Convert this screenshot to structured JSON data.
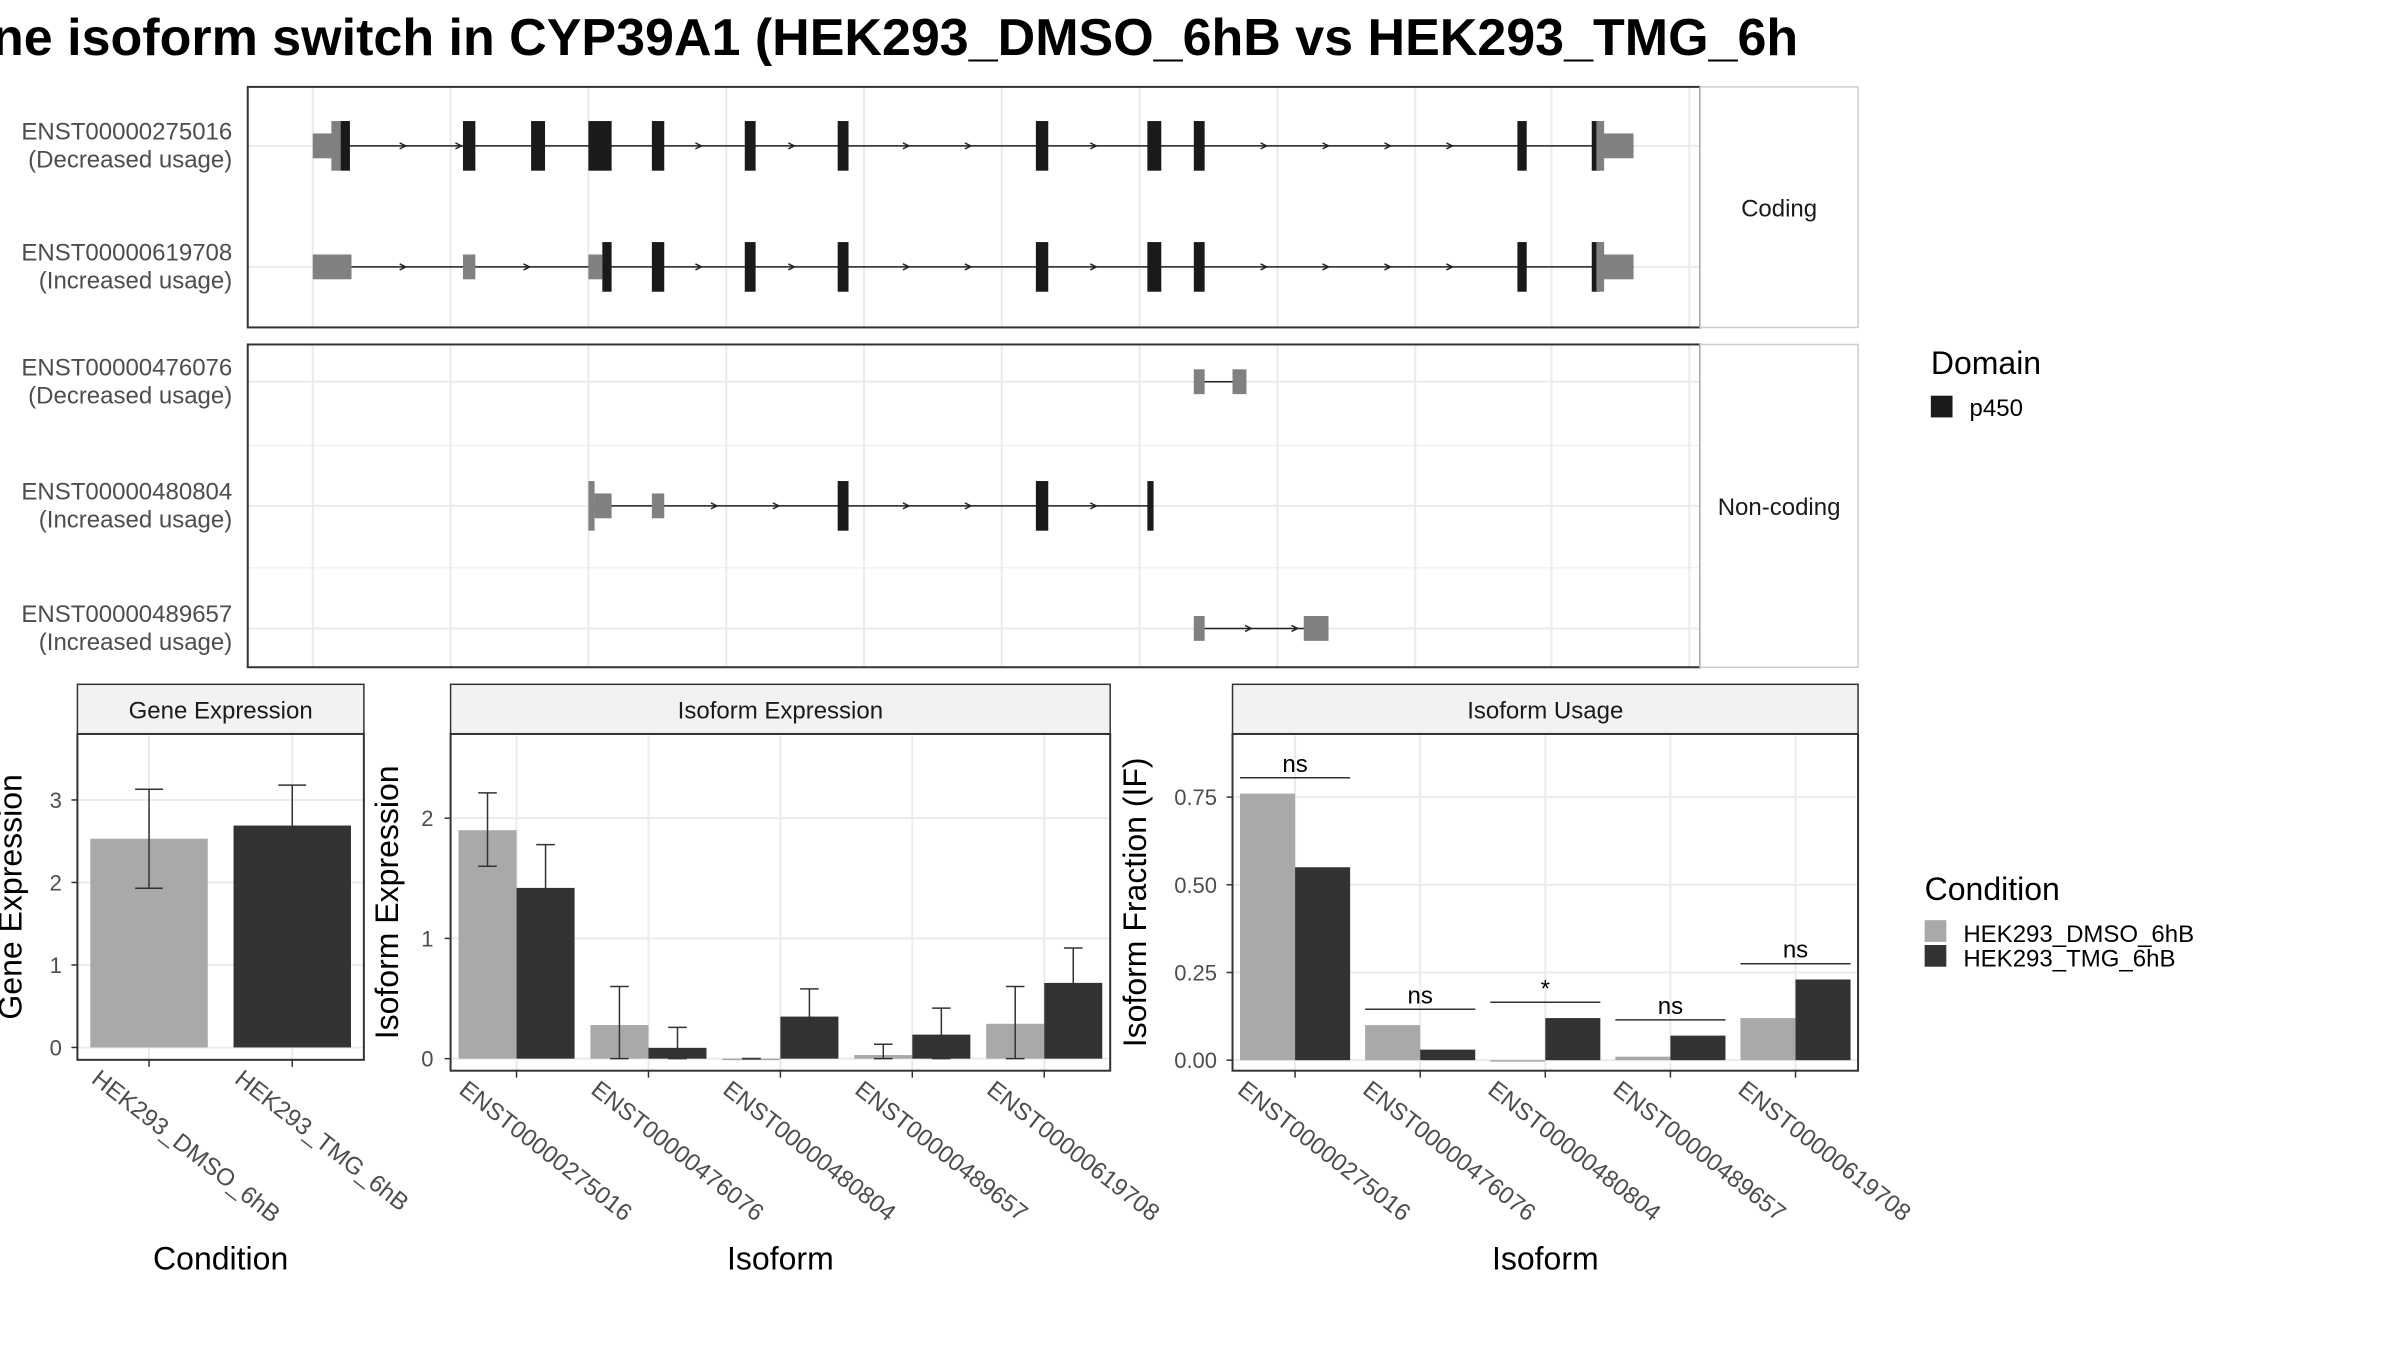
{
  "title": "ne isoform switch in CYP39A1 (HEK293_DMSO_6hB vs HEK293_TMG_6h",
  "colors": {
    "dmso": "#a9a9a9",
    "tmg": "#333333",
    "domain": "#1a1a1a",
    "utr": "#808080",
    "grid": "#ebebeb",
    "strip": "#f2f2f2"
  },
  "legend_domain": {
    "title": "Domain",
    "items": [
      "p450"
    ]
  },
  "legend_condition": {
    "title": "Condition",
    "items": [
      "HEK293_DMSO_6hB",
      "HEK293_TMG_6hB"
    ]
  },
  "structure": {
    "panels": [
      {
        "strip": "Coding",
        "rows": [
          "ENST00000275016|(Decreased usage)",
          "ENST00000619708|(Increased usage)"
        ]
      },
      {
        "strip": "Non-coding",
        "rows": [
          "ENST00000476076|(Decreased usage)",
          "ENST00000480804|(Increased usage)",
          "ENST00000489657|(Increased usage)"
        ]
      }
    ]
  },
  "chart_data": [
    {
      "type": "bar",
      "title": "Gene Expression",
      "xlabel": "Condition",
      "ylabel": "Gene Expression",
      "ylim": [
        -0.15,
        3.8
      ],
      "yticks": [
        0,
        1,
        2,
        3
      ],
      "categories": [
        "HEK293_DMSO_6hB",
        "HEK293_TMG_6hB"
      ],
      "values": [
        2.53,
        2.69
      ],
      "error": [
        [
          1.93,
          3.13
        ],
        [
          2.2,
          3.18
        ]
      ]
    },
    {
      "type": "bar",
      "title": "Isoform Expression",
      "xlabel": "Isoform",
      "ylabel": "Isoform Expression",
      "ylim": [
        -0.1,
        2.7
      ],
      "yticks": [
        0,
        1,
        2
      ],
      "categories": [
        "ENST00000275016",
        "ENST00000476076",
        "ENST00000480804",
        "ENST00000489657",
        "ENST00000619708"
      ],
      "series": [
        {
          "name": "HEK293_DMSO_6hB",
          "values": [
            1.9,
            0.28,
            0.0,
            0.03,
            0.29
          ],
          "error": [
            [
              1.6,
              2.21
            ],
            [
              0.0,
              0.6
            ],
            [
              0.0,
              0.0
            ],
            [
              0.0,
              0.12
            ],
            [
              0.0,
              0.6
            ]
          ]
        },
        {
          "name": "HEK293_TMG_6hB",
          "values": [
            1.42,
            0.09,
            0.35,
            0.2,
            0.63
          ],
          "error": [
            [
              1.08,
              1.78
            ],
            [
              0.0,
              0.26
            ],
            [
              0.12,
              0.58
            ],
            [
              0.0,
              0.42
            ],
            [
              0.37,
              0.92
            ]
          ]
        }
      ]
    },
    {
      "type": "bar",
      "title": "Isoform Usage",
      "xlabel": "Isoform",
      "ylabel": "Isoform Fraction (IF)",
      "ylim": [
        -0.03,
        0.93
      ],
      "yticks": [
        "0.00",
        "0.25",
        "0.50",
        "0.75"
      ],
      "categories": [
        "ENST00000275016",
        "ENST00000476076",
        "ENST00000480804",
        "ENST00000489657",
        "ENST00000619708"
      ],
      "series": [
        {
          "name": "HEK293_DMSO_6hB",
          "values": [
            0.76,
            0.1,
            0.0,
            0.01,
            0.12
          ]
        },
        {
          "name": "HEK293_TMG_6hB",
          "values": [
            0.55,
            0.03,
            0.12,
            0.07,
            0.23
          ]
        }
      ],
      "significance": [
        "ns",
        "ns",
        "*",
        "ns",
        "ns"
      ]
    }
  ]
}
